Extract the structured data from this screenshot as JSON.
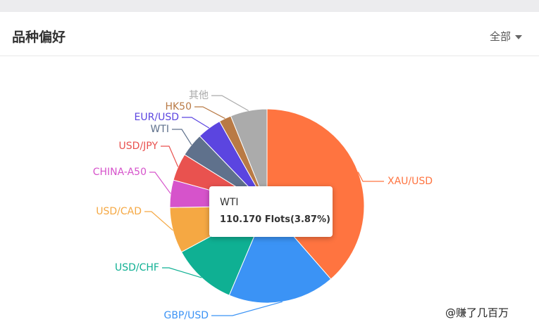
{
  "header": {
    "title": "品种偏好",
    "filter_label": "全部"
  },
  "chart_data": {
    "type": "pie",
    "title": "",
    "unit": "Flots",
    "slices": [
      {
        "label": "XAU/USD",
        "percent": 38.0,
        "color": "#ff7440"
      },
      {
        "label": "GBP/USD",
        "percent": 17.5,
        "color": "#3b93f5"
      },
      {
        "label": "USD/CHF",
        "percent": 10.6,
        "color": "#0fb093"
      },
      {
        "label": "USD/CAD",
        "percent": 7.5,
        "color": "#f5a843"
      },
      {
        "label": "CHINA-A50",
        "percent": 4.5,
        "color": "#d653cb"
      },
      {
        "label": "USD/JPY",
        "percent": 4.5,
        "color": "#e9524f"
      },
      {
        "label": "WTI",
        "percent": 3.87,
        "color": "#5f718c",
        "value": "110.170"
      },
      {
        "label": "EUR/USD",
        "percent": 4.0,
        "color": "#5b45e0"
      },
      {
        "label": "HK50",
        "percent": 2.0,
        "color": "#b97a45"
      },
      {
        "label": "其他",
        "percent": 6.0,
        "color": "#ababab"
      }
    ],
    "tooltip": {
      "name": "WTI",
      "value_text": "110.170 Flots(3.87%)"
    }
  },
  "watermark": "@赚了几百万"
}
